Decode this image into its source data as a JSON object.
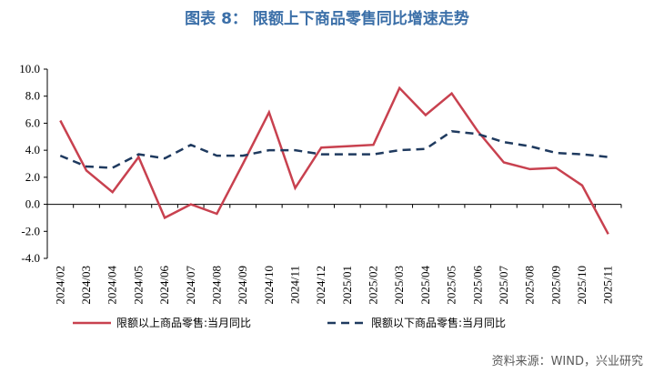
{
  "title": "图表 8：  限额上下商品零售同比增速走势",
  "source": "资料来源：WIND，兴业研究",
  "colors": {
    "series_1": "#C8414F",
    "series_2": "#1F3A5F",
    "title": "#3B6FA8"
  },
  "chart_data": {
    "type": "line",
    "title": "图表 8：  限额上下商品零售同比增速走势",
    "xlabel": "",
    "ylabel": "",
    "ylim": [
      -4.0,
      10.0
    ],
    "yticks": [
      "10.0",
      "8.0",
      "6.0",
      "4.0",
      "2.0",
      "0.0",
      "-2.0",
      "-4.0"
    ],
    "grid": false,
    "legend_position": "bottom",
    "categories": [
      "2024/02",
      "2024/03",
      "2024/04",
      "2024/05",
      "2024/06",
      "2024/07",
      "2024/08",
      "2024/09",
      "2024/10",
      "2024/11",
      "2024/12",
      "2025/01",
      "2025/02",
      "2025/03",
      "2025/04",
      "2025/05",
      "2025/06",
      "2025/07",
      "2025/08",
      "2025/09",
      "2025/10",
      "2025/11"
    ],
    "series": [
      {
        "name": "限额以上商品零售:当月同比",
        "style": "solid",
        "values": [
          6.2,
          2.5,
          0.9,
          3.5,
          -1.0,
          0.0,
          -0.7,
          3.0,
          6.8,
          1.2,
          4.2,
          4.3,
          4.4,
          8.6,
          6.6,
          8.2,
          5.4,
          3.1,
          2.6,
          2.7,
          1.4,
          -2.2
        ]
      },
      {
        "name": "限额以下商品零售:当月同比",
        "style": "dashed",
        "values": [
          3.6,
          2.8,
          2.7,
          3.7,
          3.4,
          4.4,
          3.6,
          3.6,
          4.0,
          4.0,
          3.7,
          3.7,
          3.7,
          4.0,
          4.1,
          5.4,
          5.2,
          4.6,
          4.3,
          3.8,
          3.7,
          3.5
        ]
      }
    ]
  }
}
